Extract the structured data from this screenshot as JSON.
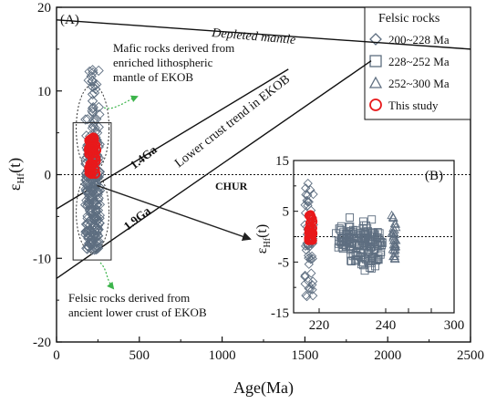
{
  "chart_data": [
    {
      "panel": "(A)",
      "type": "scatter",
      "xlabel": "Age(Ma)",
      "ylabel": "εHf(t)",
      "xlim": [
        0,
        2500
      ],
      "ylim": [
        -20,
        20
      ],
      "x_ticks": [
        0,
        500,
        1000,
        1500,
        2000,
        2500
      ],
      "y_ticks": [
        -20,
        -10,
        0,
        10,
        20
      ],
      "grid": false,
      "reference_lines": [
        {
          "label": "Depleted mantle",
          "from": [
            0,
            18.5
          ],
          "to": [
            2500,
            15.0
          ]
        },
        {
          "label": "1.4Ga",
          "from": [
            0,
            -4.1
          ],
          "to": [
            1400,
            12.6
          ]
        },
        {
          "label": "1.9Ga",
          "from": [
            0,
            -12.4
          ],
          "to": [
            1900,
            13.6
          ]
        },
        {
          "label": "CHUR",
          "from": [
            0,
            0
          ],
          "to": [
            2500,
            0
          ],
          "style": "dotted"
        }
      ],
      "trend_label": "Lower crust trend in EKOB",
      "annotations": [
        "Mafic rocks derived from enriched lithospheric mantle of EKOB",
        "Felsic rocks derived from ancient lower crust of EKOB"
      ],
      "series": [
        {
          "name": "200~228 Ma",
          "marker": "diamond",
          "color": "#5e6e80",
          "x": 218,
          "y_range": [
            -9.5,
            12.5
          ]
        },
        {
          "name": "This study",
          "marker": "circle",
          "color": "#e8191b",
          "x": 218,
          "y_range": [
            0,
            4.5
          ]
        }
      ],
      "boxes": [
        {
          "x": [
            100,
            330
          ],
          "y": [
            -10.2,
            6.2
          ]
        }
      ]
    },
    {
      "panel": "(B)",
      "type": "scatter",
      "ylabel": "εHf(t)",
      "xlim": [
        210,
        300
      ],
      "ylim": [
        -15,
        15
      ],
      "x_ticks": [
        220,
        240,
        260,
        280,
        300
      ],
      "x_tick_labels": [
        "220",
        "240",
        "300"
      ],
      "y_ticks": [
        -15,
        -5,
        5,
        15
      ],
      "y_tick_labels": [
        "-15",
        "-5",
        "5",
        "15"
      ],
      "y_minor_ticks": [
        -10,
        0,
        10
      ],
      "reference_lines": [
        {
          "label": "CHUR",
          "from": [
            210,
            0
          ],
          "to": [
            260,
            0
          ],
          "style": "dotted"
        }
      ],
      "series": [
        {
          "name": "200~228 Ma",
          "marker": "diamond",
          "color": "#5e6e80",
          "x": 217,
          "y_range": [
            -12,
            11
          ]
        },
        {
          "name": "228~252 Ma",
          "marker": "square",
          "color": "#5e6e80",
          "x_range": [
            226,
            238
          ],
          "y_range": [
            -8,
            3
          ]
        },
        {
          "name": "252~300 Ma",
          "marker": "triangle",
          "color": "#5e6e80",
          "x": 247,
          "y_range": [
            -5,
            5
          ]
        },
        {
          "name": "This study",
          "marker": "circle",
          "color": "#e8191b",
          "x": 217.5,
          "y_range": [
            -1,
            4.5
          ]
        }
      ]
    }
  ],
  "panel_a_label": "(A)",
  "panel_b_label": "(B)",
  "legend": {
    "title": "Felsic rocks",
    "items": [
      "200~228 Ma",
      "228~252 Ma",
      "252~300 Ma",
      "This study"
    ]
  },
  "labels": {
    "depleted_mantle": "Depleted mantle",
    "ga14": "1.4Ga",
    "ga19": "1.9Ga",
    "chur": "CHUR",
    "lower_crust": "Lower crust trend in EKOB",
    "mafic_line1": "Mafic rocks derived from",
    "mafic_line2": "enriched lithospheric",
    "mafic_line3": "mantle of EKOB",
    "felsic_line1": "Felsic rocks derived from",
    "felsic_line2": "ancient lower crust of EKOB"
  },
  "axis_a": {
    "xlabel": "Age(Ma)",
    "ylabel_main": "ε",
    "ylabel_sub": "Hf",
    "ylabel_tail": "(t)",
    "xticks": [
      "0",
      "500",
      "1000",
      "1500",
      "2000",
      "2500"
    ],
    "yticks": [
      "-20",
      "-10",
      "0",
      "10",
      "20"
    ]
  },
  "axis_b": {
    "ylabel_main": "ε",
    "ylabel_sub": "Hf",
    "ylabel_tail": "(t)",
    "xticks": [
      "220",
      "240",
      "300"
    ],
    "yticks": [
      "15",
      "5",
      "-5",
      "-15"
    ]
  },
  "colors": {
    "gray_marker": "#5e6e80",
    "red_marker": "#e8191b",
    "green_arrow": "#3cb44b",
    "axis": "#111111"
  }
}
